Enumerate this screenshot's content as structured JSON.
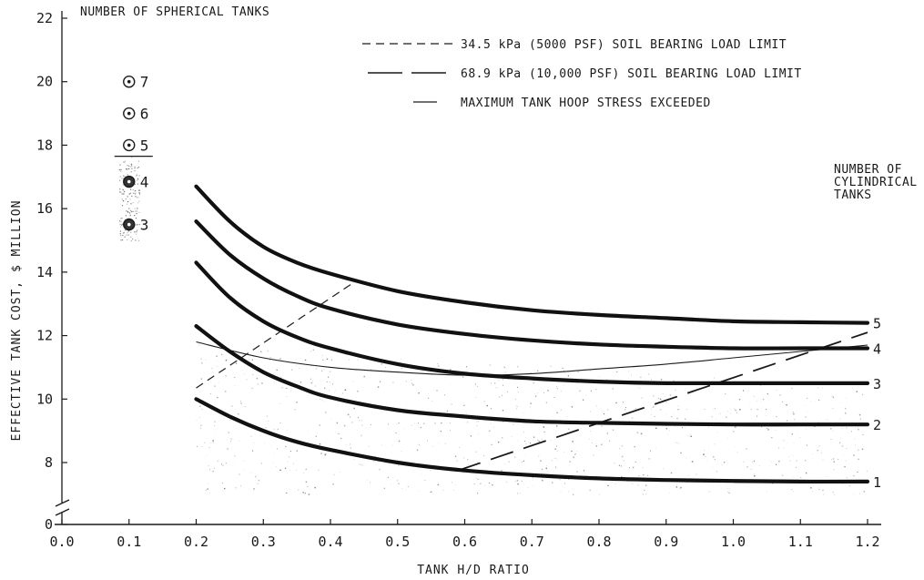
{
  "chart_data": {
    "type": "line",
    "xlabel": "TANK H/D RATIO",
    "ylabel": "EFFECTIVE TANK COST, $ MILLION",
    "xlim": [
      0.0,
      1.2
    ],
    "ylim": [
      0,
      22
    ],
    "y_axis_break": true,
    "grid": false,
    "x_ticks": [
      "0.0",
      "0.1",
      "0.2",
      "0.3",
      "0.4",
      "0.5",
      "0.6",
      "0.7",
      "0.8",
      "0.9",
      "1.0",
      "1.1",
      "1.2"
    ],
    "y_ticks": [
      "0",
      "8",
      "10",
      "12",
      "14",
      "16",
      "18",
      "20",
      "22"
    ],
    "legend": {
      "placement": "top",
      "entries": [
        {
          "label": "34.5 kPa (5000 PSF) SOIL BEARING LOAD LIMIT",
          "style": "dashed"
        },
        {
          "label": "68.9 kPa (10,000 PSF) SOIL BEARING LOAD LIMIT",
          "style": "long-dashed"
        },
        {
          "label": "MAXIMUM TANK HOOP STRESS EXCEEDED",
          "style": "thin-solid"
        }
      ]
    },
    "cylindrical_title": "NUMBER OF CYLINDRICAL TANKS",
    "spherical_title": "NUMBER OF SPHERICAL TANKS",
    "series": [
      {
        "name": "1",
        "x": [
          0.2,
          0.25,
          0.3,
          0.35,
          0.4,
          0.5,
          0.6,
          0.7,
          0.8,
          0.9,
          1.0,
          1.1,
          1.2
        ],
        "y": [
          10.0,
          9.45,
          9.0,
          8.65,
          8.4,
          8.0,
          7.75,
          7.6,
          7.5,
          7.45,
          7.42,
          7.4,
          7.4
        ]
      },
      {
        "name": "2",
        "x": [
          0.2,
          0.25,
          0.3,
          0.35,
          0.4,
          0.5,
          0.6,
          0.7,
          0.8,
          0.9,
          1.0,
          1.1,
          1.2
        ],
        "y": [
          12.3,
          11.5,
          10.85,
          10.4,
          10.05,
          9.65,
          9.45,
          9.3,
          9.25,
          9.22,
          9.2,
          9.2,
          9.2
        ]
      },
      {
        "name": "3",
        "x": [
          0.2,
          0.25,
          0.3,
          0.35,
          0.4,
          0.5,
          0.6,
          0.7,
          0.8,
          0.9,
          1.0,
          1.1,
          1.2
        ],
        "y": [
          14.3,
          13.2,
          12.45,
          11.95,
          11.6,
          11.1,
          10.8,
          10.65,
          10.55,
          10.5,
          10.5,
          10.5,
          10.5
        ]
      },
      {
        "name": "4",
        "x": [
          0.2,
          0.25,
          0.3,
          0.35,
          0.4,
          0.5,
          0.6,
          0.7,
          0.8,
          0.9,
          1.0,
          1.1,
          1.2
        ],
        "y": [
          15.6,
          14.55,
          13.8,
          13.25,
          12.85,
          12.35,
          12.05,
          11.85,
          11.72,
          11.65,
          11.6,
          11.6,
          11.6
        ]
      },
      {
        "name": "5",
        "x": [
          0.2,
          0.25,
          0.3,
          0.35,
          0.4,
          0.5,
          0.6,
          0.7,
          0.8,
          0.9,
          1.0,
          1.1,
          1.2
        ],
        "y": [
          16.7,
          15.6,
          14.8,
          14.3,
          13.95,
          13.4,
          13.05,
          12.8,
          12.65,
          12.55,
          12.45,
          12.42,
          12.4
        ]
      }
    ],
    "limit_lines": [
      {
        "name": "34.5 kPa (5000 PSF) SOIL BEARING LOAD LIMIT",
        "style": "dashed",
        "x": [
          0.2,
          0.44
        ],
        "y": [
          10.35,
          13.75
        ]
      },
      {
        "name": "68.9 kPa (10,000 PSF) SOIL BEARING LOAD LIMIT",
        "style": "long-dashed",
        "x": [
          0.59,
          1.2
        ],
        "y": [
          7.75,
          12.1
        ]
      },
      {
        "name": "MAXIMUM TANK HOOP STRESS EXCEEDED",
        "style": "thin-solid",
        "x": [
          0.2,
          0.3,
          0.4,
          0.5,
          0.6,
          0.7,
          0.8,
          0.9,
          1.0,
          1.1,
          1.2
        ],
        "y": [
          11.8,
          11.3,
          11.0,
          10.85,
          10.75,
          10.8,
          10.95,
          11.1,
          11.3,
          11.5,
          11.7
        ]
      }
    ],
    "spherical_points": [
      {
        "label": "7",
        "x": 0.1,
        "y": 20.0
      },
      {
        "label": "6",
        "x": 0.1,
        "y": 19.0
      },
      {
        "label": "5",
        "x": 0.1,
        "y": 18.0
      },
      {
        "label": "4",
        "x": 0.1,
        "y": 16.85
      },
      {
        "label": "3",
        "x": 0.1,
        "y": 15.5
      }
    ],
    "spherical_cutoff_y": 17.65
  }
}
